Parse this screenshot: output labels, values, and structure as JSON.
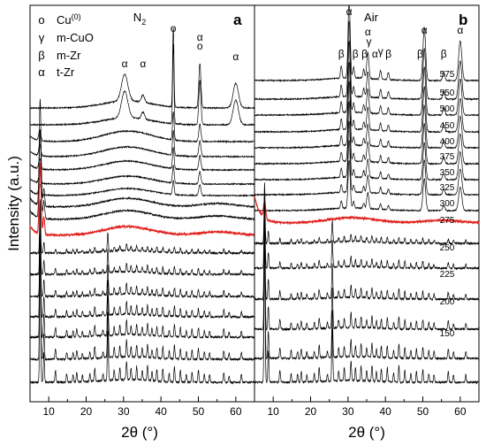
{
  "figure": {
    "ylabel": "Intensity (a.u.)"
  },
  "legend": {
    "items": [
      {
        "symbol": "o",
        "label": "Cu",
        "sup": "(0)"
      },
      {
        "symbol": "γ",
        "label": "m-CuO",
        "sup": ""
      },
      {
        "symbol": "β",
        "label": "m-Zr",
        "sup": ""
      },
      {
        "symbol": "α",
        "label": "t-Zr",
        "sup": ""
      }
    ]
  },
  "chart_data": [
    {
      "type": "line",
      "panel": "a",
      "title": "N",
      "title_sub": "2",
      "xlabel": "2θ (°)",
      "xlim": [
        5,
        65
      ],
      "xticks": [
        10,
        20,
        30,
        40,
        50,
        60
      ],
      "highlight_index": 9,
      "colors": {
        "normal": "#000000",
        "highlight": "#e0201c"
      },
      "series_count": 17,
      "peak_labels": [
        {
          "x": 30.3,
          "symbol": "α"
        },
        {
          "x": 35.2,
          "symbol": "α"
        },
        {
          "x": 43.3,
          "symbol": "o"
        },
        {
          "x": 50.4,
          "symbol": "o"
        },
        {
          "x": 50.4,
          "symbol": "α"
        },
        {
          "x": 60.0,
          "symbol": "α"
        }
      ]
    },
    {
      "type": "line",
      "panel": "b",
      "title": "Air",
      "xlabel": "2θ (°)",
      "xlim": [
        5,
        65
      ],
      "xticks": [
        10,
        20,
        30,
        40,
        50,
        60
      ],
      "highlight_index": 9,
      "colors": {
        "normal": "#000000",
        "highlight": "#e0201c"
      },
      "series_labels": [
        "575",
        "550",
        "500",
        "450",
        "400",
        "375",
        "350",
        "325",
        "300",
        "275",
        "250",
        "225",
        "200",
        "150"
      ],
      "peak_labels": [
        {
          "x": 28.2,
          "symbol": "β"
        },
        {
          "x": 30.3,
          "symbol": "α"
        },
        {
          "x": 31.5,
          "symbol": "β"
        },
        {
          "x": 34.2,
          "symbol": "β"
        },
        {
          "x": 35.3,
          "symbol": "α"
        },
        {
          "x": 35.6,
          "symbol": "γ"
        },
        {
          "x": 37.2,
          "symbol": "α"
        },
        {
          "x": 38.7,
          "symbol": "γ"
        },
        {
          "x": 40.8,
          "symbol": "β"
        },
        {
          "x": 49.3,
          "symbol": "β"
        },
        {
          "x": 50.4,
          "symbol": "α"
        },
        {
          "x": 55.6,
          "symbol": "β"
        },
        {
          "x": 60.0,
          "symbol": "α"
        }
      ]
    }
  ]
}
